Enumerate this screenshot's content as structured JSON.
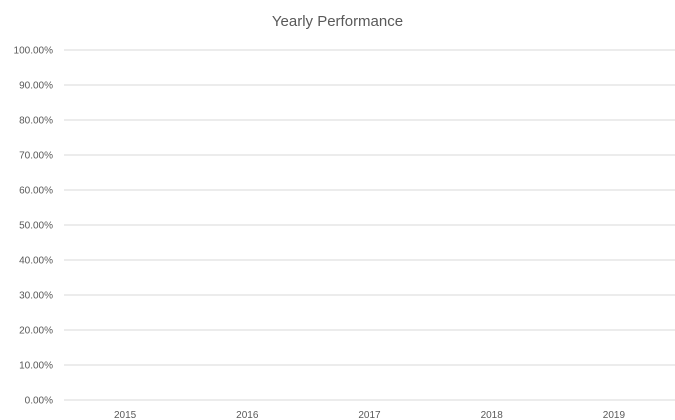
{
  "chart_data": {
    "type": "line",
    "title": "Yearly Performance",
    "xlabel": "",
    "ylabel": "",
    "categories": [
      "2015",
      "2016",
      "2017",
      "2018",
      "2019"
    ],
    "y_ticks": [
      "0.00%",
      "10.00%",
      "20.00%",
      "30.00%",
      "40.00%",
      "50.00%",
      "60.00%",
      "70.00%",
      "80.00%",
      "90.00%",
      "100.00%"
    ],
    "ylim": [
      0,
      1
    ],
    "series": [],
    "grid": true,
    "legend": "none",
    "colors": {
      "gridline": "#d9d9d9",
      "text": "#595959"
    }
  }
}
